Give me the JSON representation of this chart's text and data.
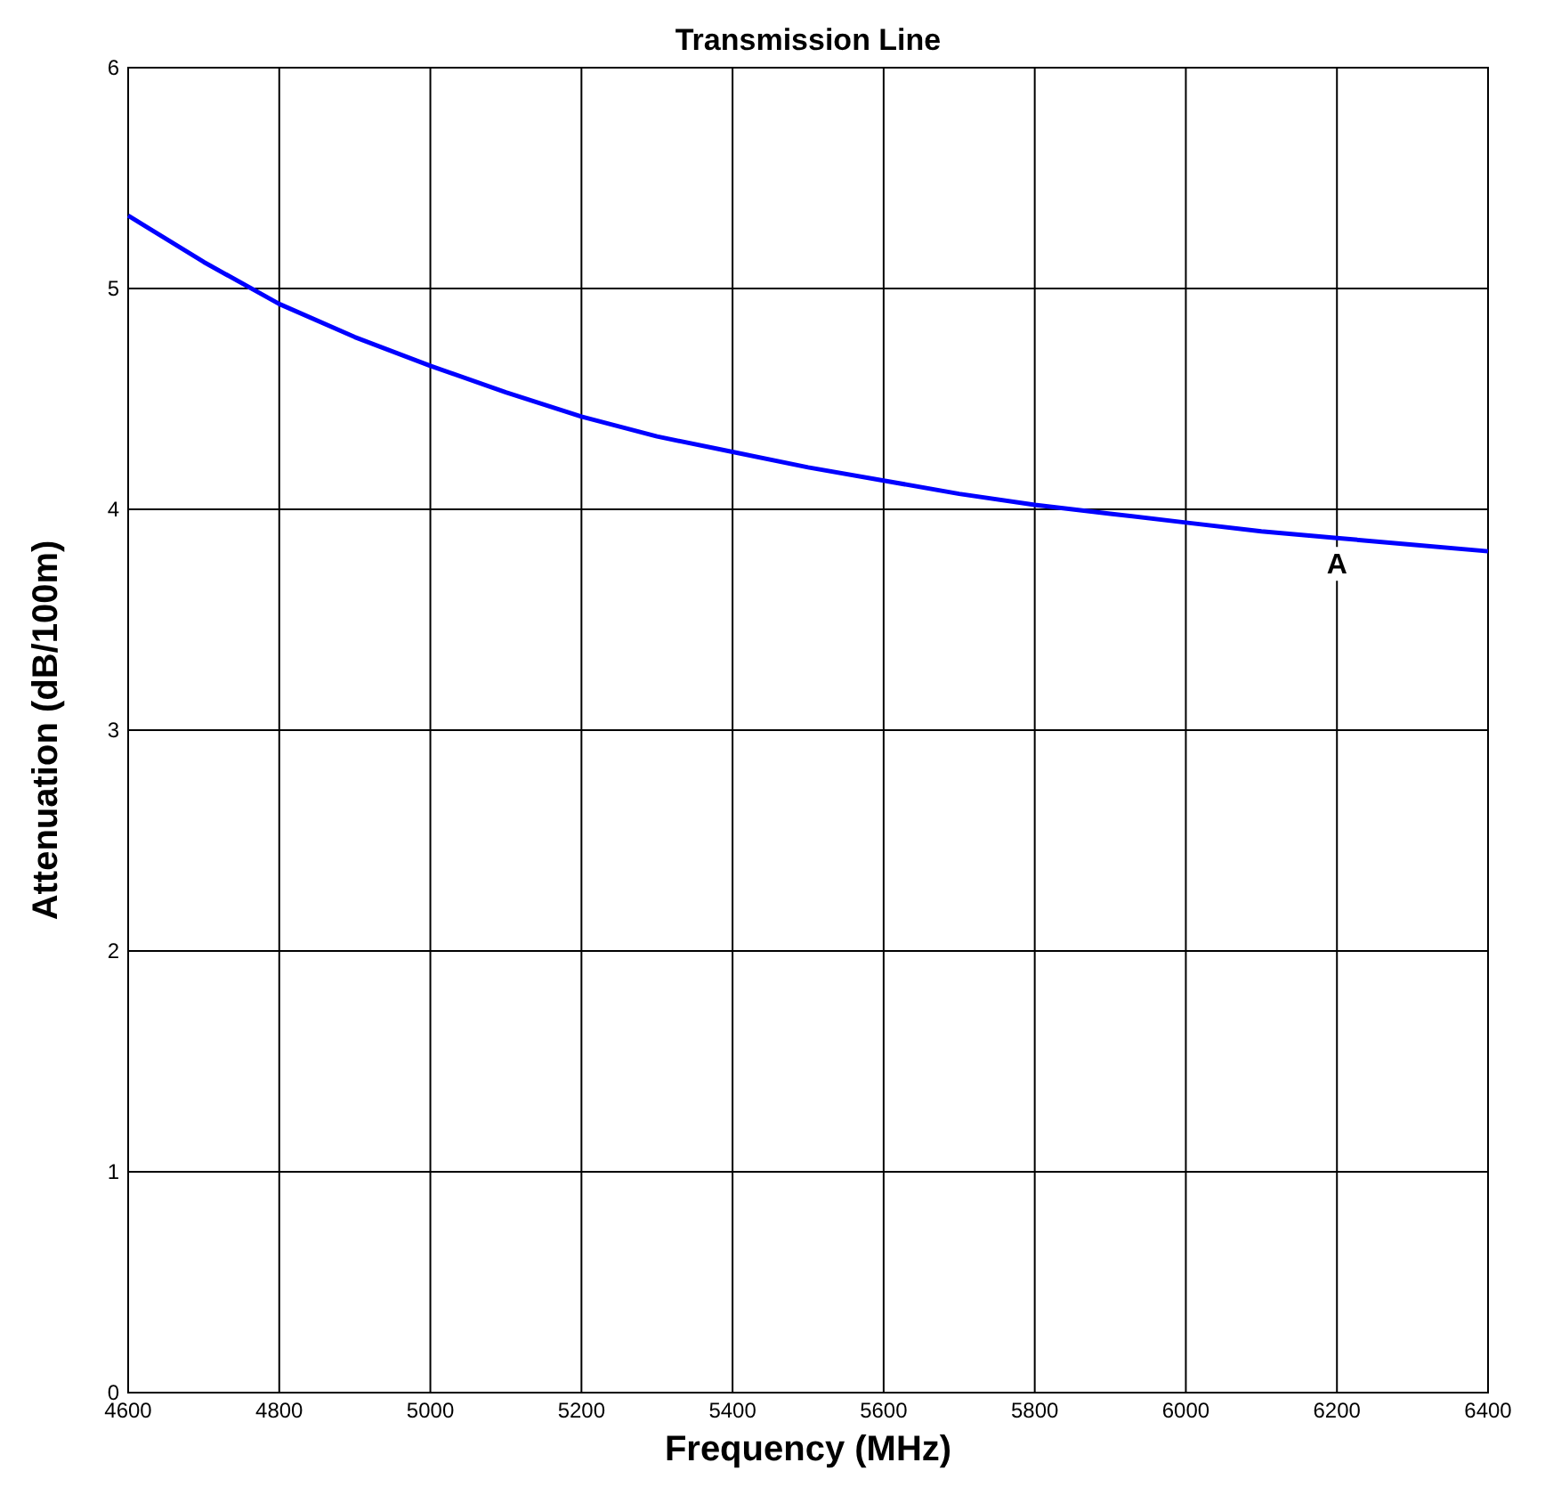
{
  "chart_data": {
    "type": "line",
    "title": "Transmission Line",
    "xlabel": "Frequency (MHz)",
    "ylabel": "Attenuation (dB/100m)",
    "x": [
      4600,
      4700,
      4800,
      4900,
      5000,
      5100,
      5200,
      5300,
      5400,
      5500,
      5600,
      5700,
      5800,
      5900,
      6000,
      6100,
      6200,
      6300,
      6400
    ],
    "series": [
      {
        "color": "#0000ff",
        "values": [
          5.33,
          5.12,
          4.93,
          4.78,
          4.65,
          4.53,
          4.42,
          4.33,
          4.26,
          4.19,
          4.13,
          4.07,
          4.02,
          3.98,
          3.94,
          3.9,
          3.87,
          3.84,
          3.81
        ]
      }
    ],
    "xlim": [
      4600,
      6400
    ],
    "xticks": [
      4600,
      4800,
      5000,
      5200,
      5400,
      5600,
      5800,
      6000,
      6200,
      6400
    ],
    "ylim": [
      0,
      6
    ],
    "yticks": [
      0,
      1,
      2,
      3,
      4,
      5,
      6
    ],
    "grid": true,
    "marker": "none",
    "line_style": "solid",
    "annotations": [
      {
        "text": "A",
        "x": 6200,
        "y": 3.87
      }
    ]
  }
}
